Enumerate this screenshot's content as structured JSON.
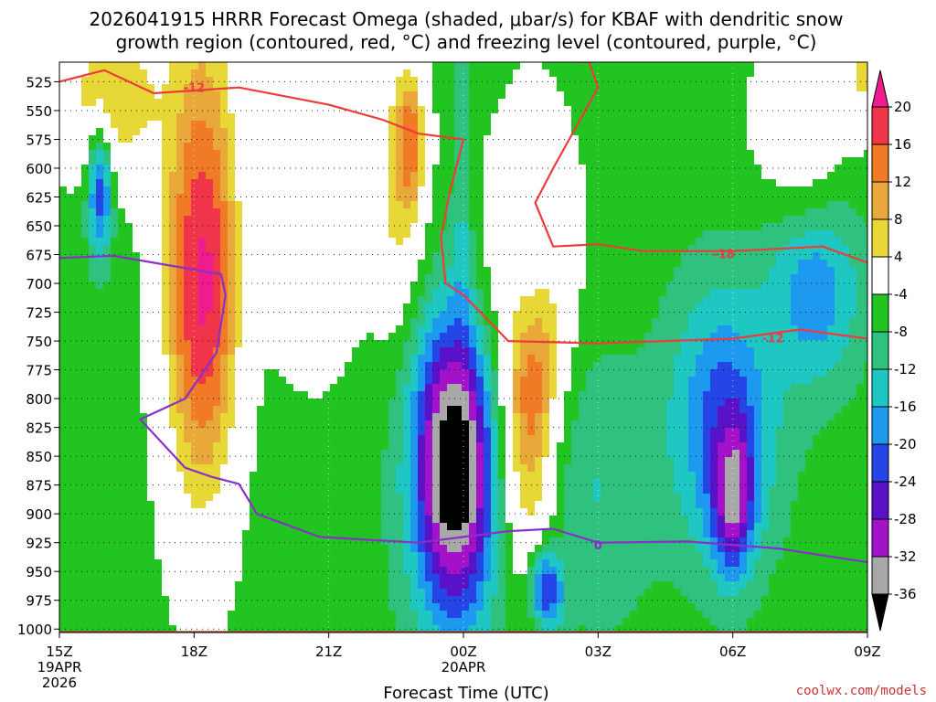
{
  "chart_data": {
    "type": "heatmap",
    "title_line1": "2026041915 HRRR Forecast Omega (shaded, μbar/s) for KBAF with dendritic snow",
    "title_line2": "growth region (contoured, red, °C) and freezing level (contoured, purple, °C)",
    "xlabel": "Forecast Time (UTC)",
    "credit": "coolwx.com/models",
    "y_axis": {
      "quantity": "pressure (mb)",
      "ticks": [
        525,
        550,
        575,
        600,
        625,
        650,
        675,
        700,
        725,
        750,
        775,
        800,
        825,
        850,
        875,
        900,
        925,
        950,
        975,
        1000
      ],
      "ylim": [
        1003,
        508
      ]
    },
    "x_axis": {
      "range_hours_utc": [
        "2026-04-19 15Z",
        "2026-04-20 09Z"
      ],
      "ticks": [
        {
          "label": "15Z",
          "hour": 0,
          "sub1": "19APR",
          "sub2": "2026"
        },
        {
          "label": "18Z",
          "hour": 3
        },
        {
          "label": "21Z",
          "hour": 6
        },
        {
          "label": "00Z",
          "hour": 9,
          "sub1": "20APR"
        },
        {
          "label": "03Z",
          "hour": 12
        },
        {
          "label": "06Z",
          "hour": 15
        },
        {
          "label": "09Z",
          "hour": 18
        }
      ]
    },
    "grid": "dotted",
    "colorbar": {
      "placement": "right",
      "labels": [
        "20",
        "16",
        "12",
        "8",
        "4",
        "-4",
        "-8",
        "-12",
        "-16",
        "-20",
        "-24",
        "-28",
        "-32",
        "-36"
      ],
      "bins": [
        {
          "range": [
            20,
            24
          ],
          "color": "#ee1c8c"
        },
        {
          "range": [
            16,
            20
          ],
          "color": "#f0354a"
        },
        {
          "range": [
            12,
            16
          ],
          "color": "#f07a25"
        },
        {
          "range": [
            8,
            12
          ],
          "color": "#e8a93a"
        },
        {
          "range": [
            4,
            8
          ],
          "color": "#e8d837"
        },
        {
          "range": [
            -4,
            4
          ],
          "color": "#ffffff"
        },
        {
          "range": [
            -8,
            -4
          ],
          "color": "#21c421"
        },
        {
          "range": [
            -12,
            -8
          ],
          "color": "#2ec27e"
        },
        {
          "range": [
            -16,
            -12
          ],
          "color": "#1fc7c3"
        },
        {
          "range": [
            -20,
            -16
          ],
          "color": "#1d9af0"
        },
        {
          "range": [
            -24,
            -20
          ],
          "color": "#2545e6"
        },
        {
          "range": [
            -28,
            -24
          ],
          "color": "#5a12c8"
        },
        {
          "range": [
            -32,
            -28
          ],
          "color": "#a312c8"
        },
        {
          "range": [
            -36,
            -32
          ],
          "color": "#a8a8a8"
        },
        {
          "range": [
            -40,
            -36
          ],
          "color": "#000000"
        }
      ]
    },
    "omega_field": {
      "background_value": -6,
      "features": [
        {
          "t": 1.2,
          "p": 540,
          "rt": 1.6,
          "rp": 90,
          "v": 8
        },
        {
          "t": 3.1,
          "p": 640,
          "rt": 1.2,
          "rp": 360,
          "v": 6
        },
        {
          "t": 3.2,
          "p": 700,
          "rt": 0.9,
          "rp": 200,
          "v": 21
        },
        {
          "t": 0.9,
          "p": 625,
          "rt": 0.35,
          "rp": 70,
          "v": -22
        },
        {
          "t": 5.2,
          "p": 640,
          "rt": 0.9,
          "rp": 150,
          "v": 0
        },
        {
          "t": 6.0,
          "p": 620,
          "rt": 1.2,
          "rp": 200,
          "v": 0
        },
        {
          "t": 7.6,
          "p": 620,
          "rt": 0.8,
          "rp": 160,
          "v": 7
        },
        {
          "t": 7.8,
          "p": 580,
          "rt": 0.35,
          "rp": 70,
          "v": 17
        },
        {
          "t": 9.0,
          "p": 700,
          "rt": 0.3,
          "rp": 230,
          "v": -16
        },
        {
          "t": 8.8,
          "p": 860,
          "rt": 1.4,
          "rp": 200,
          "v": -22
        },
        {
          "t": 8.8,
          "p": 860,
          "rt": 0.9,
          "rp": 130,
          "v": -42
        },
        {
          "t": 10.6,
          "p": 780,
          "rt": 0.85,
          "rp": 200,
          "v": 21
        },
        {
          "t": 10.4,
          "p": 650,
          "rt": 1.5,
          "rp": 130,
          "v": 0
        },
        {
          "t": 10.9,
          "p": 965,
          "rt": 0.5,
          "rp": 45,
          "v": -28
        },
        {
          "t": 12.0,
          "p": 880,
          "rt": 1.5,
          "rp": 150,
          "v": -12
        },
        {
          "t": 14.8,
          "p": 820,
          "rt": 1.5,
          "rp": 150,
          "v": -22
        },
        {
          "t": 15.0,
          "p": 880,
          "rt": 0.55,
          "rp": 80,
          "v": -36
        },
        {
          "t": 16.8,
          "p": 700,
          "rt": 1.3,
          "rp": 110,
          "v": -20
        },
        {
          "t": 16.5,
          "p": 560,
          "rt": 1.5,
          "rp": 110,
          "v": 0
        },
        {
          "t": 18.0,
          "p": 520,
          "rt": 0.9,
          "rp": 60,
          "v": 5
        }
      ]
    },
    "dgz_contours": {
      "color": "#ee3b3b",
      "labels": [
        {
          "text": "-12",
          "t": 3.0,
          "p": 530
        },
        {
          "text": "-18",
          "t": 14.8,
          "p": 674
        },
        {
          "text": "-12",
          "t": 15.9,
          "p": 747
        }
      ],
      "lines": [
        [
          [
            0,
            525
          ],
          [
            1.0,
            515
          ],
          [
            2.1,
            535
          ],
          [
            4.0,
            530
          ],
          [
            6.0,
            545
          ],
          [
            7.2,
            558
          ],
          [
            8.0,
            570
          ],
          [
            9.0,
            575
          ],
          [
            8.7,
            620
          ],
          [
            8.5,
            660
          ],
          [
            8.6,
            700
          ],
          [
            9.0,
            710
          ],
          [
            10.0,
            750
          ],
          [
            12.0,
            752
          ],
          [
            15.0,
            748
          ],
          [
            16.5,
            740
          ],
          [
            18.0,
            748
          ]
        ],
        [
          [
            9.0,
            508
          ],
          [
            9.5,
            505
          ],
          [
            11.8,
            508
          ],
          [
            12.0,
            530
          ],
          [
            11.0,
            600
          ],
          [
            10.6,
            630
          ],
          [
            11.0,
            668
          ],
          [
            12.0,
            666
          ],
          [
            13.0,
            672
          ],
          [
            15.0,
            672
          ],
          [
            17.0,
            668
          ],
          [
            18.0,
            682
          ]
        ]
      ]
    },
    "freezing_contours": {
      "color": "#8b2fc9",
      "labels": [
        {
          "text": "0",
          "t": 12.0,
          "p": 927
        }
      ],
      "lines": [
        [
          [
            0,
            678
          ],
          [
            1.2,
            676
          ],
          [
            3.6,
            692
          ],
          [
            3.7,
            710
          ],
          [
            3.5,
            760
          ],
          [
            2.8,
            800
          ],
          [
            1.8,
            818
          ],
          [
            2.8,
            860
          ],
          [
            3.4,
            868
          ],
          [
            4.0,
            874
          ],
          [
            4.4,
            900
          ],
          [
            5.8,
            920
          ],
          [
            8.0,
            925
          ],
          [
            9.0,
            920
          ],
          [
            10.0,
            915
          ],
          [
            11.0,
            913
          ],
          [
            12.0,
            925
          ],
          [
            14.0,
            924
          ],
          [
            16.0,
            930
          ],
          [
            18.0,
            942
          ]
        ]
      ]
    }
  }
}
